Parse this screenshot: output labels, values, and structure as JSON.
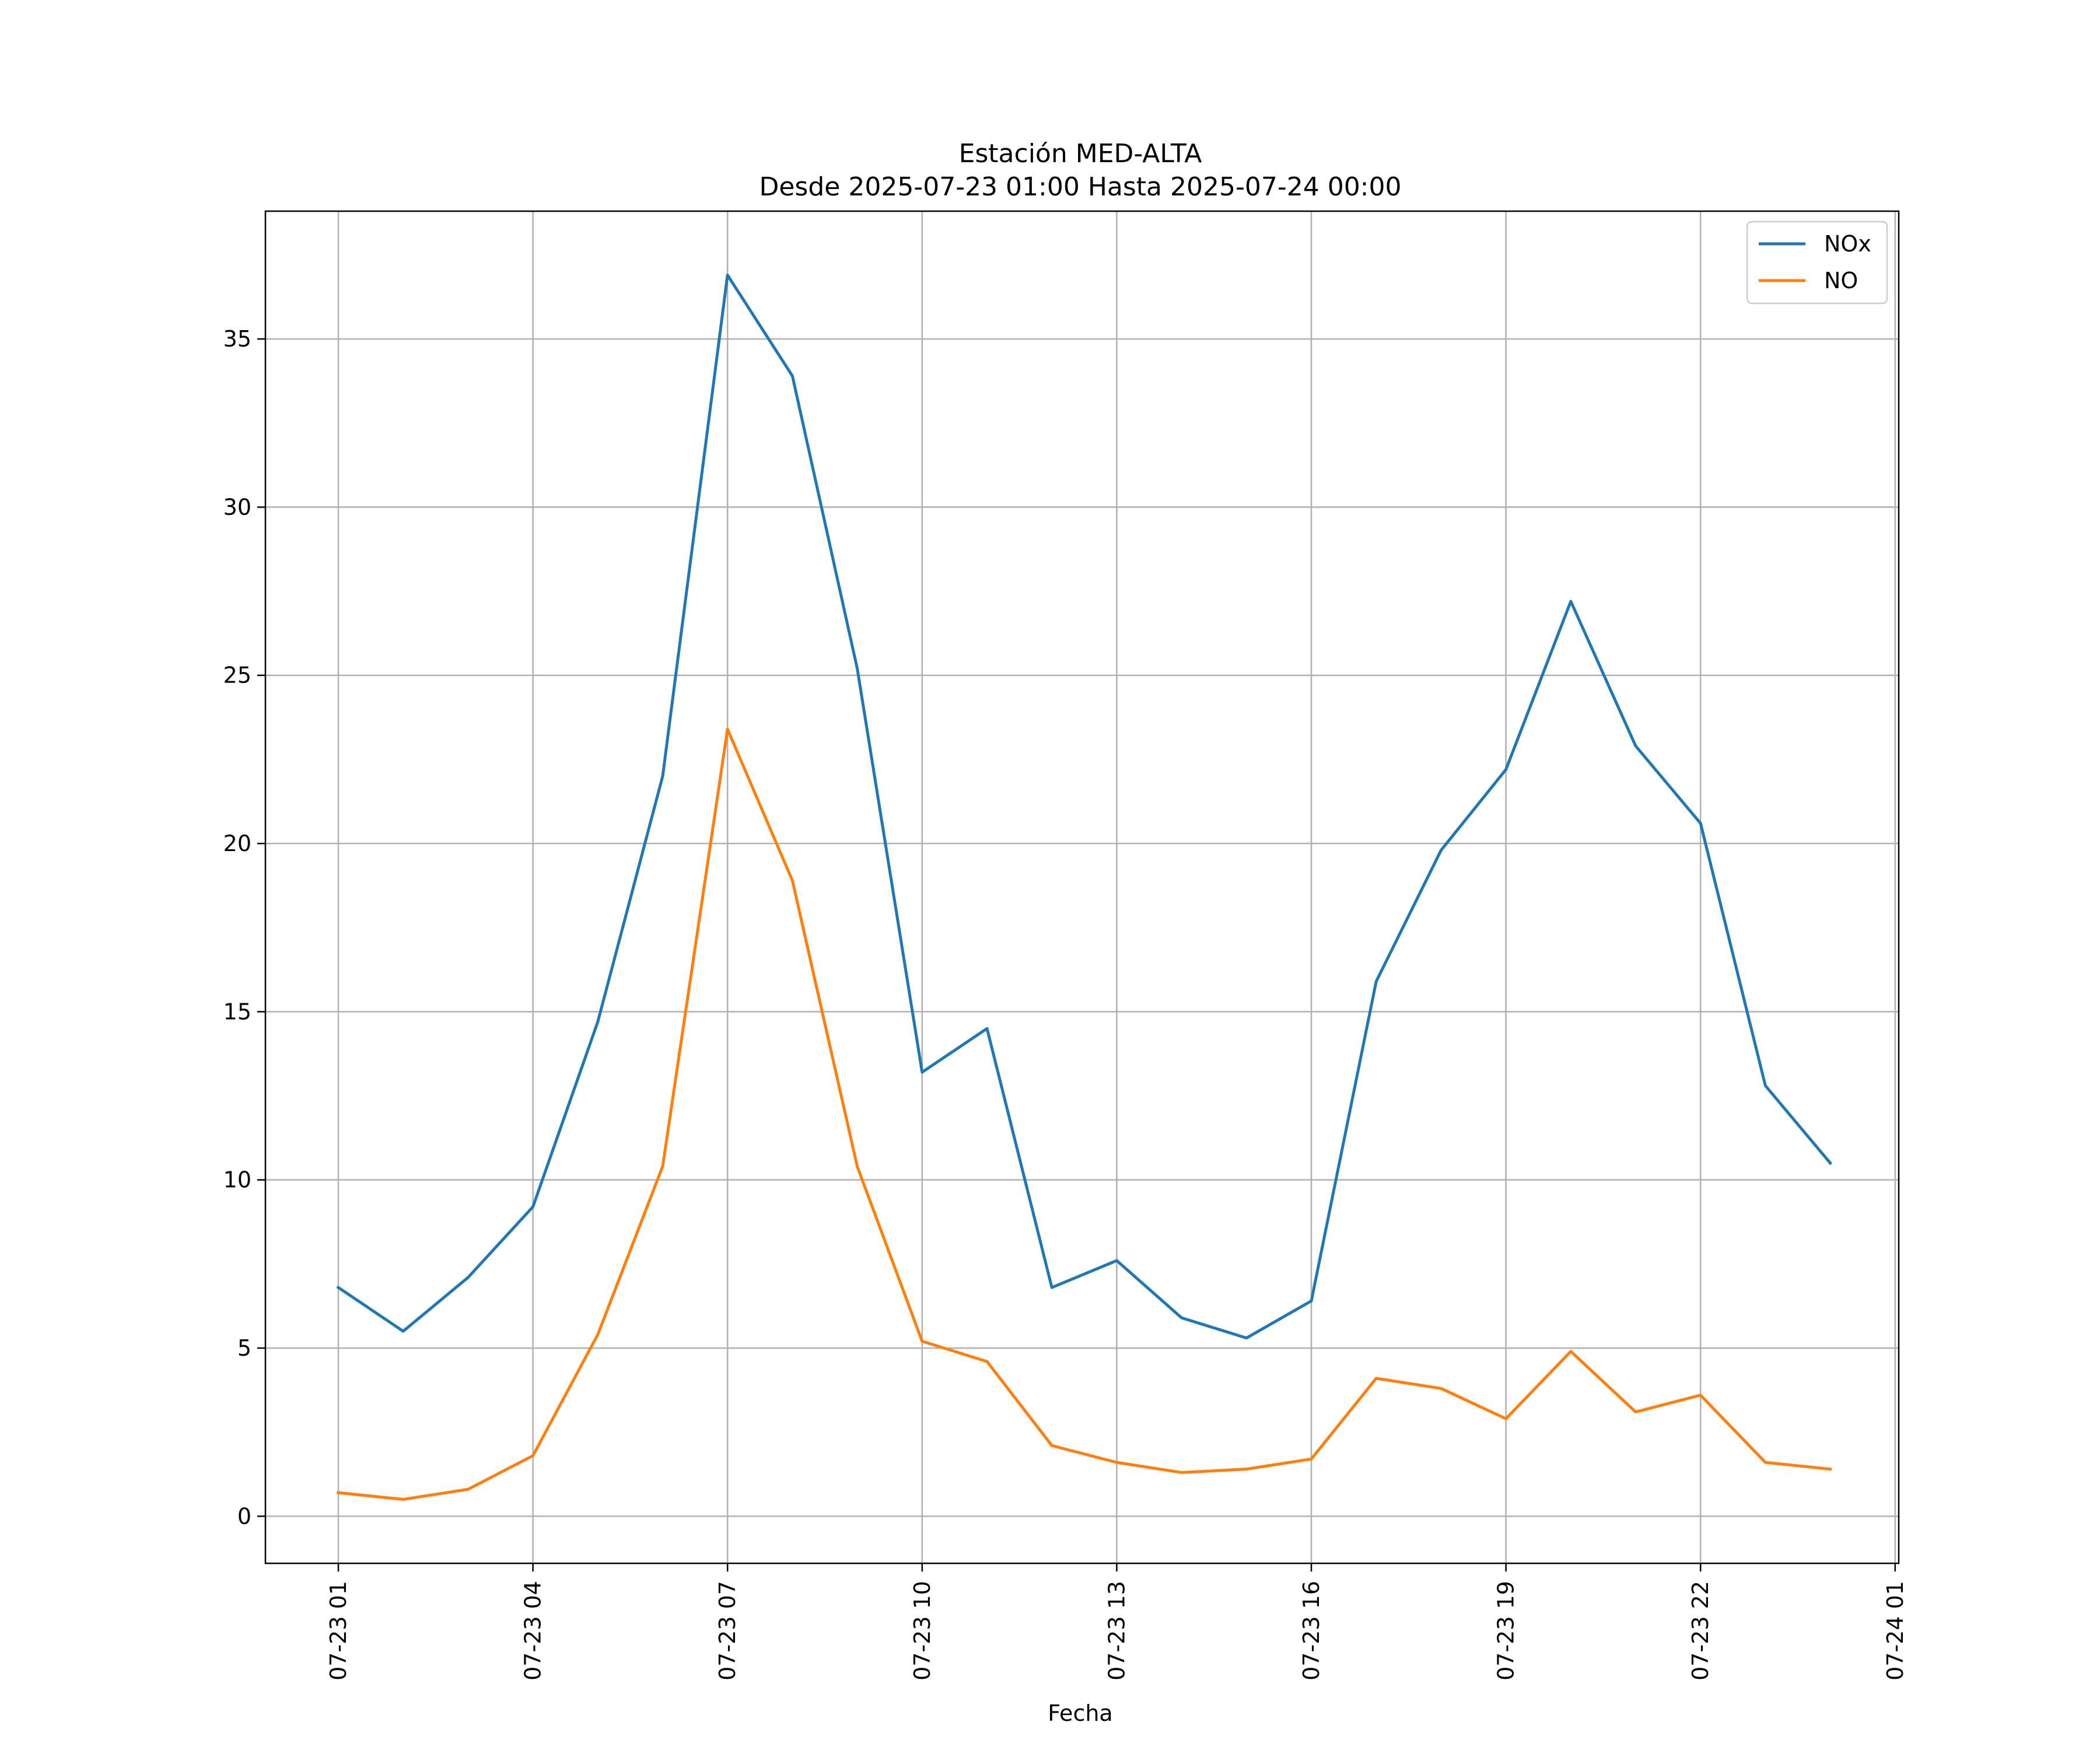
{
  "chart_data": {
    "type": "line",
    "title": "Estación MED-ALTA",
    "subtitle": "Desde 2025-07-23 01:00 Hasta 2025-07-24 00:00",
    "xlabel": "Fecha",
    "ylabel": "",
    "x": [
      "07-23 01",
      "07-23 02",
      "07-23 03",
      "07-23 04",
      "07-23 05",
      "07-23 06",
      "07-23 07",
      "07-23 08",
      "07-23 09",
      "07-23 10",
      "07-23 11",
      "07-23 12",
      "07-23 13",
      "07-23 14",
      "07-23 15",
      "07-23 16",
      "07-23 17",
      "07-23 18",
      "07-23 19",
      "07-23 20",
      "07-23 21",
      "07-23 22",
      "07-23 23",
      "07-24 00"
    ],
    "x_tick_labels": [
      "07-23 01",
      "07-23 04",
      "07-23 07",
      "07-23 10",
      "07-23 13",
      "07-23 16",
      "07-23 19",
      "07-23 22",
      "07-24 01"
    ],
    "y_ticks": [
      0,
      5,
      10,
      15,
      20,
      25,
      30,
      35
    ],
    "ylim": [
      -1.4,
      38.8
    ],
    "xlim": [
      "07-23 00:09",
      "07-24 01:09"
    ],
    "grid": true,
    "legend_position": "top-right",
    "series": [
      {
        "name": "NOx",
        "color": "#1f77b4",
        "values": [
          6.8,
          5.5,
          7.1,
          9.2,
          14.7,
          22.0,
          36.9,
          33.9,
          25.2,
          13.2,
          14.5,
          6.8,
          7.6,
          5.9,
          5.3,
          6.4,
          15.9,
          19.8,
          22.2,
          27.2,
          22.9,
          20.6,
          12.8,
          10.5
        ]
      },
      {
        "name": "NO",
        "color": "#ff7f0e",
        "values": [
          0.7,
          0.5,
          0.8,
          1.8,
          5.4,
          10.4,
          23.4,
          18.9,
          10.4,
          5.2,
          4.6,
          2.1,
          1.6,
          1.3,
          1.4,
          1.7,
          4.1,
          3.8,
          2.9,
          4.9,
          3.1,
          3.6,
          1.6,
          1.4
        ]
      }
    ]
  }
}
